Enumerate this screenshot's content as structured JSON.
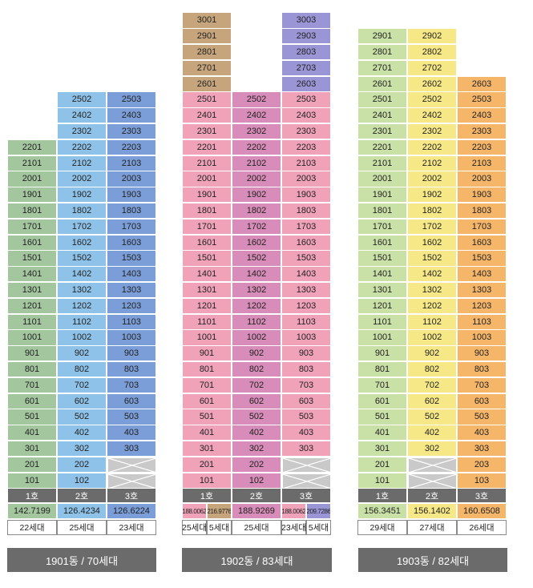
{
  "colors": {
    "green": "#a3c69f",
    "blue_light": "#8fc2e8",
    "blue_dark": "#7b9ed8",
    "brown": "#c6a57d",
    "pink": "#f0a2b9",
    "magenta": "#d88cb9",
    "purple": "#9a96d6",
    "lime": "#c9e0a6",
    "yellow": "#f7e887",
    "orange": "#f5b66a",
    "gray": "#6b6b6b",
    "empty_gray": "#c9c9c9"
  },
  "buildings": [
    {
      "name": "1901동 / 70세대",
      "columns": [
        {
          "ho": "1호",
          "floors": 22,
          "empty": [],
          "color": "green",
          "areas": [
            "142.7199"
          ],
          "units": [
            "22세대"
          ]
        },
        {
          "ho": "2호",
          "floors": 25,
          "empty": [],
          "color": "blue_light",
          "areas": [
            "126.4234"
          ],
          "units": [
            "25세대"
          ]
        },
        {
          "ho": "3호",
          "floors": 25,
          "empty": [
            1,
            2
          ],
          "color": "blue_dark",
          "areas": [
            "126.6224"
          ],
          "units": [
            "23세대"
          ]
        }
      ]
    },
    {
      "name": "1902동 / 83세대",
      "columns": [
        {
          "ho": "1호",
          "floors": 30,
          "empty": [],
          "color": "pink",
          "top_color": "brown",
          "top_from": 26,
          "areas": [
            "188.0062",
            "216.9776"
          ],
          "area_colors": [
            "pink",
            "brown"
          ],
          "units": [
            "25세대",
            "5세대"
          ]
        },
        {
          "ho": "2호",
          "floors": 25,
          "empty": [],
          "color": "magenta",
          "areas": [
            "188.9269"
          ],
          "units": [
            "25세대"
          ]
        },
        {
          "ho": "3호",
          "floors": 30,
          "empty": [
            1,
            2
          ],
          "color": "pink",
          "top_color": "purple",
          "top_from": 26,
          "areas": [
            "188.0062",
            "209.7286"
          ],
          "area_colors": [
            "pink",
            "purple"
          ],
          "units": [
            "23세대",
            "5세대"
          ]
        }
      ]
    },
    {
      "name": "1903동 / 82세대",
      "columns": [
        {
          "ho": "1호",
          "floors": 29,
          "empty": [],
          "color": "lime",
          "areas": [
            "156.3451"
          ],
          "units": [
            "29세대"
          ]
        },
        {
          "ho": "2호",
          "floors": 29,
          "empty": [
            1,
            2
          ],
          "color": "yellow",
          "areas": [
            "156.1402"
          ],
          "units": [
            "27세대"
          ]
        },
        {
          "ho": "3호",
          "floors": 26,
          "empty": [],
          "color": "orange",
          "areas": [
            "160.6508"
          ],
          "units": [
            "26세대"
          ]
        }
      ]
    }
  ]
}
